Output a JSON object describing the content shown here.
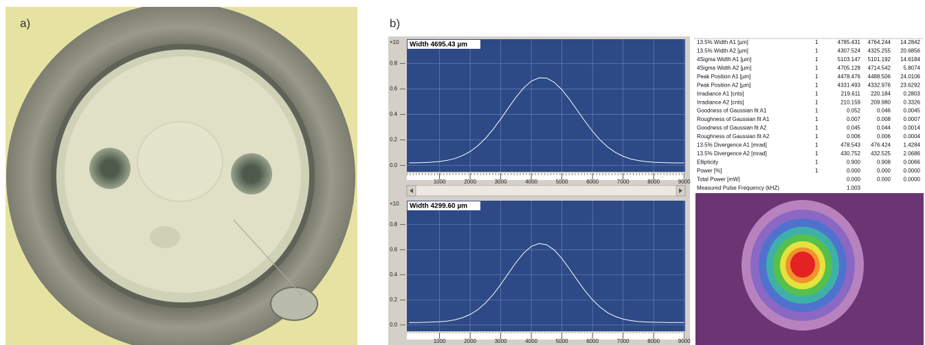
{
  "labels": {
    "a": "a)",
    "b": "b)"
  },
  "chart_data": [
    {
      "type": "line",
      "title": "Width 4695.43 µm",
      "y_multiplier": "×10",
      "color": "#ffffff",
      "grid": true,
      "x": [
        0,
        250,
        500,
        750,
        1000,
        1250,
        1500,
        1750,
        2000,
        2250,
        2500,
        2750,
        3000,
        3250,
        3500,
        3750,
        4000,
        4250,
        4500,
        4750,
        5000,
        5250,
        5500,
        5750,
        6000,
        6250,
        6500,
        6750,
        7000,
        7250,
        7500,
        7750,
        8000,
        8250,
        8500,
        8750,
        9000
      ],
      "values": [
        0.021,
        0.021,
        0.023,
        0.026,
        0.031,
        0.04,
        0.054,
        0.077,
        0.109,
        0.154,
        0.212,
        0.283,
        0.364,
        0.451,
        0.535,
        0.608,
        0.661,
        0.687,
        0.685,
        0.652,
        0.594,
        0.518,
        0.433,
        0.348,
        0.268,
        0.199,
        0.144,
        0.102,
        0.072,
        0.051,
        0.038,
        0.03,
        0.025,
        0.023,
        0.021,
        0.02,
        0.02
      ],
      "xlim": [
        -70,
        9030
      ],
      "ylim": [
        -0.05,
        0.99
      ],
      "xticks": [
        1000,
        2000,
        3000,
        4000,
        5000,
        6000,
        7000,
        8000,
        9000
      ],
      "yticks": [
        {
          "value": 0,
          "label": "0.0"
        },
        0.2,
        0.4,
        0.6,
        0.8
      ]
    },
    {
      "type": "line",
      "title": "Width 4299.60 µm",
      "y_multiplier": "×10",
      "color": "#ffffff",
      "grid": true,
      "x": [
        0,
        250,
        500,
        750,
        1000,
        1250,
        1500,
        1750,
        2000,
        2250,
        2500,
        2750,
        3000,
        3250,
        3500,
        3750,
        4000,
        4250,
        4500,
        4750,
        5000,
        5250,
        5500,
        5750,
        6000,
        6250,
        6500,
        6750,
        7000,
        7250,
        7500,
        7750,
        8000,
        8250,
        8500,
        8750,
        9000
      ],
      "values": [
        0.02,
        0.02,
        0.021,
        0.023,
        0.026,
        0.031,
        0.041,
        0.058,
        0.084,
        0.122,
        0.175,
        0.242,
        0.323,
        0.411,
        0.498,
        0.573,
        0.626,
        0.649,
        0.639,
        0.597,
        0.53,
        0.446,
        0.358,
        0.274,
        0.201,
        0.142,
        0.097,
        0.067,
        0.047,
        0.035,
        0.027,
        0.024,
        0.022,
        0.021,
        0.02,
        0.02,
        0.02
      ],
      "xlim": [
        -70,
        9030
      ],
      "ylim": [
        -0.05,
        0.99
      ],
      "xticks": [
        1000,
        2000,
        3000,
        4000,
        5000,
        6000,
        7000,
        8000,
        9000
      ],
      "yticks": [
        {
          "value": 0,
          "label": "0.0"
        },
        0.2,
        0.4,
        0.6,
        0.8
      ]
    }
  ],
  "table": {
    "rows": [
      {
        "name": "13.5% Width A1 [µm]",
        "count": "1",
        "values": [
          "4785.431",
          "4764.244",
          "14.2842"
        ]
      },
      {
        "name": "13.5% Width A2 [µm]",
        "count": "1",
        "values": [
          "4307.524",
          "4325.255",
          "20.6856"
        ]
      },
      {
        "name": "4Sigma Width A1 [µm]",
        "count": "1",
        "values": [
          "5103.147",
          "5101.192",
          "14.6184"
        ]
      },
      {
        "name": "4Sigma Width A2 [µm]",
        "count": "1",
        "values": [
          "4705.128",
          "4714.542",
          "5.8074"
        ]
      },
      {
        "name": "Peak Position A1 [µm]",
        "count": "1",
        "values": [
          "4478.476",
          "4488.506",
          "24.0106"
        ]
      },
      {
        "name": "Peak Position A2 [µm]",
        "count": "1",
        "values": [
          "4331.493",
          "4332.976",
          "23.6292"
        ]
      },
      {
        "name": "Irradiance A1 [cnts]",
        "count": "1",
        "values": [
          "219.611",
          "220.184",
          "0.2803"
        ]
      },
      {
        "name": "Irradiance A2 [cnts]",
        "count": "1",
        "values": [
          "210.159",
          "209.980",
          "0.3326"
        ]
      },
      {
        "name": "Goodness of Gaussian fit A1",
        "count": "1",
        "values": [
          "0.052",
          "0.046",
          "0.0045"
        ]
      },
      {
        "name": "Roughness of Gaussian fit A1",
        "count": "1",
        "values": [
          "0.007",
          "0.008",
          "0.0007"
        ]
      },
      {
        "name": "Goodness of Gaussian fit A2",
        "count": "1",
        "values": [
          "0.045",
          "0.044",
          "0.0014"
        ]
      },
      {
        "name": "Roughness of Gaussian fit A2",
        "count": "1",
        "values": [
          "0.006",
          "0.006",
          "0.0004"
        ]
      },
      {
        "name": "13.5% Divergence A1 [mrad]",
        "count": "1",
        "values": [
          "478.543",
          "476.424",
          "1.4284"
        ]
      },
      {
        "name": "13.5% Divergence A2 [mrad]",
        "count": "1",
        "values": [
          "430.752",
          "432.525",
          "2.0686"
        ]
      },
      {
        "name": "Ellipticity",
        "count": "1",
        "values": [
          "0.900",
          "0.908",
          "0.0066"
        ]
      },
      {
        "name": "Power [%]",
        "count": "1",
        "values": [
          "0.000",
          "0.000",
          "0.0000"
        ]
      },
      {
        "name": "Total Power [mW]",
        "values": [
          "0.000",
          "0.000",
          "0.0000"
        ]
      },
      {
        "name": "Measured Pulse Frequency (kHZ)",
        "values": [
          "1.003"
        ]
      }
    ]
  }
}
